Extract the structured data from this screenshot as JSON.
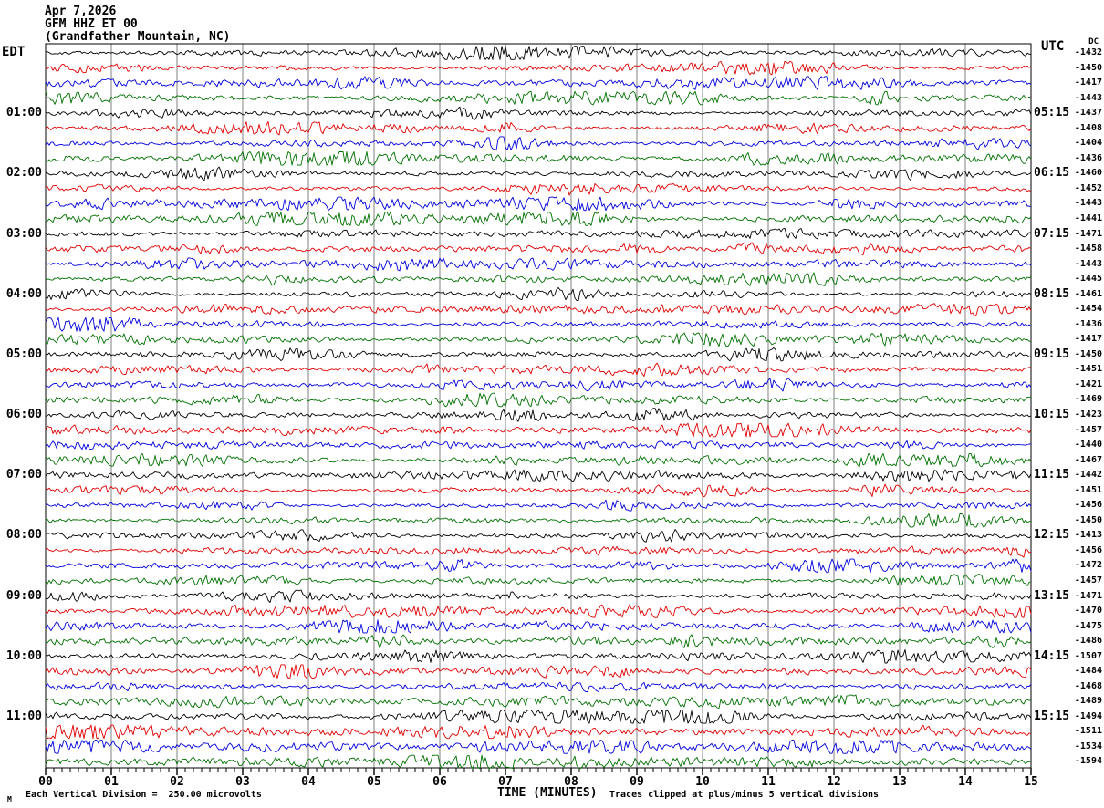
{
  "header": {
    "date": "Apr 7,2026",
    "station": "GFM HHZ ET 00",
    "location": "(Grandfather Mountain, NC)"
  },
  "left_axis": {
    "label": "EDT",
    "hours": [
      "01:00",
      "02:00",
      "03:00",
      "04:00",
      "05:00",
      "06:00",
      "07:00",
      "08:00",
      "09:00",
      "10:00",
      "11:00"
    ]
  },
  "right_axis": {
    "label": "UTC",
    "dc_label": "DC",
    "hours": [
      "05:15",
      "06:15",
      "07:15",
      "08:15",
      "09:15",
      "10:15",
      "11:15",
      "12:15",
      "13:15",
      "14:15",
      "15:15"
    ],
    "dc_values": [
      "-1432",
      "-1450",
      "-1417",
      "-1443",
      "-1437",
      "-1408",
      "-1404",
      "-1436",
      "-1460",
      "-1452",
      "-1443",
      "-1441",
      "-1471",
      "-1458",
      "-1443",
      "-1445",
      "-1461",
      "-1454",
      "-1436",
      "-1417",
      "-1450",
      "-1451",
      "-1421",
      "-1469",
      "-1423",
      "-1457",
      "-1440",
      "-1467",
      "-1442",
      "-1451",
      "-1456",
      "-1450",
      "-1413",
      "-1456",
      "-1472",
      "-1457",
      "-1471",
      "-1470",
      "-1475",
      "-1486",
      "-1507",
      "-1484",
      "-1468",
      "-1489",
      "-1494",
      "-1511",
      "-1534",
      "-1594"
    ]
  },
  "x_axis": {
    "title": "TIME (MINUTES)",
    "ticks": [
      "00",
      "01",
      "02",
      "03",
      "04",
      "05",
      "06",
      "07",
      "08",
      "09",
      "10",
      "11",
      "12",
      "13",
      "14",
      "15"
    ]
  },
  "footer": {
    "watermark": "M",
    "scale_note": "Each Vertical Division =  250.00 microvolts",
    "clip_note": "Traces clipped at plus/minus 5 vertical divisions"
  },
  "colors": {
    "trace_cycle": [
      "#000000",
      "#e00000",
      "#0000dd",
      "#007000"
    ],
    "grid": "#808080",
    "frame": "#000000",
    "text": "#000000",
    "background": "#ffffff"
  },
  "chart_data": {
    "type": "line",
    "subtype": "seismogram-helicorder",
    "title": "GFM HHZ ET 00 (Grandfather Mountain, NC) — Apr 7,2026",
    "xlabel": "TIME (MINUTES)",
    "x_range_minutes": [
      0,
      15
    ],
    "x_tick_labels": [
      "00",
      "01",
      "02",
      "03",
      "04",
      "05",
      "06",
      "07",
      "08",
      "09",
      "10",
      "11",
      "12",
      "13",
      "14",
      "15"
    ],
    "minor_ticks_per_minute": 8,
    "rows": 48,
    "minutes_per_row": 15,
    "rows_per_hour": 4,
    "trace_color_cycle": [
      "black",
      "red",
      "blue",
      "green"
    ],
    "edt_hour_labels": [
      "01:00",
      "02:00",
      "03:00",
      "04:00",
      "05:00",
      "06:00",
      "07:00",
      "08:00",
      "09:00",
      "10:00",
      "11:00"
    ],
    "utc_hour_labels": [
      "05:15",
      "06:15",
      "07:15",
      "08:15",
      "09:15",
      "10:15",
      "11:15",
      "12:15",
      "13:15",
      "14:15",
      "15:15"
    ],
    "dc_offsets": [
      -1432,
      -1450,
      -1417,
      -1443,
      -1437,
      -1408,
      -1404,
      -1436,
      -1460,
      -1452,
      -1443,
      -1441,
      -1471,
      -1458,
      -1443,
      -1445,
      -1461,
      -1454,
      -1436,
      -1417,
      -1450,
      -1451,
      -1421,
      -1469,
      -1423,
      -1457,
      -1440,
      -1467,
      -1442,
      -1451,
      -1456,
      -1450,
      -1413,
      -1456,
      -1472,
      -1457,
      -1471,
      -1470,
      -1475,
      -1486,
      -1507,
      -1484,
      -1468,
      -1489,
      -1494,
      -1511,
      -1534,
      -1594
    ],
    "vertical_division_microvolts": 250.0,
    "clipping_divisions": 5,
    "note": "Traces are continuous broadband seismic background noise; waveform samples not individually resolvable"
  }
}
